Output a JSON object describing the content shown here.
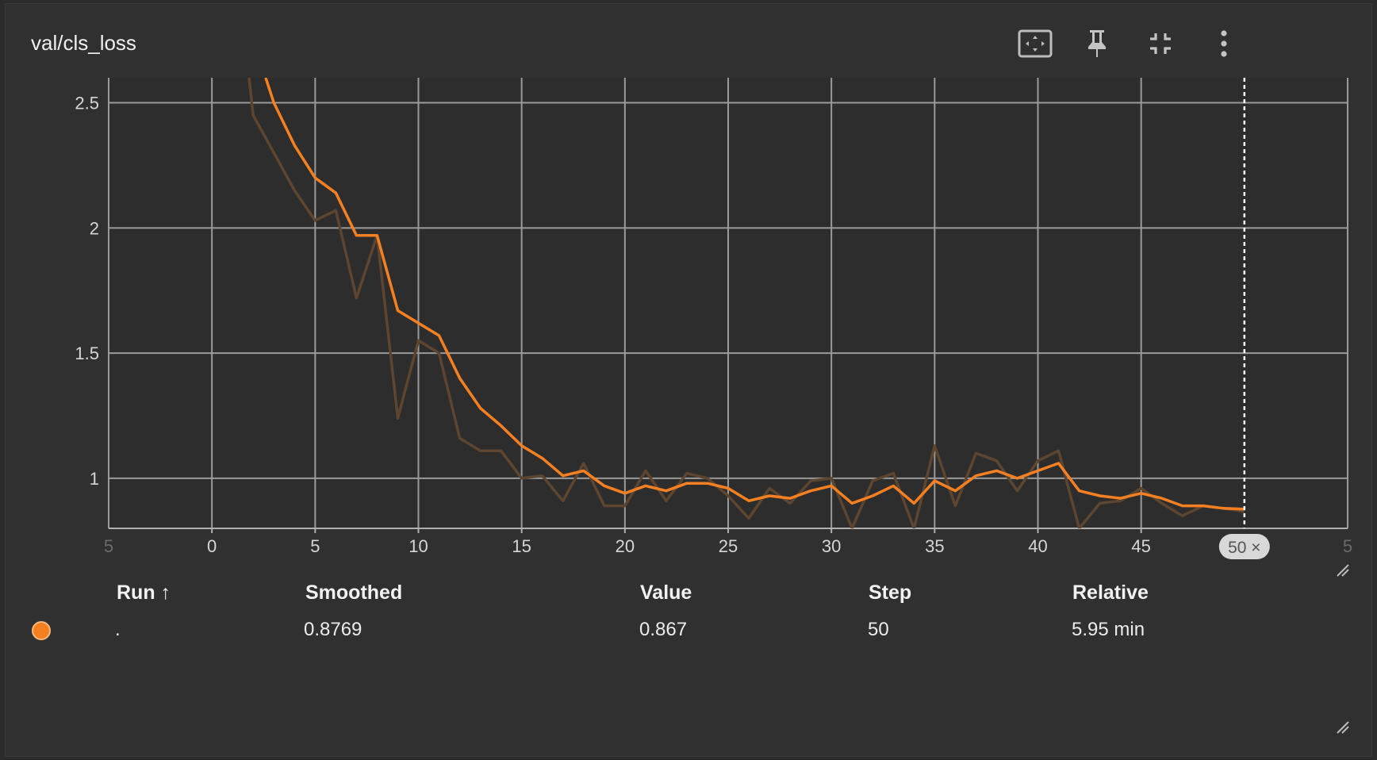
{
  "card": {
    "title": "val/cls_loss",
    "tools": [
      "fit-domain-icon",
      "pin-icon",
      "collapse-icon",
      "more-vert-icon"
    ]
  },
  "table": {
    "headers": {
      "run": "Run ↑",
      "smoothed": "Smoothed",
      "value": "Value",
      "step": "Step",
      "relative": "Relative"
    },
    "row": {
      "run": ".",
      "smoothed": "0.8769",
      "value": "0.867",
      "step": "50",
      "relative": "5.95 min",
      "color": "#f58022"
    }
  },
  "chart_data": {
    "type": "line",
    "title": "",
    "xlabel": "",
    "ylabel": "",
    "xlim": [
      -5,
      55
    ],
    "ylim": [
      0.8,
      2.6
    ],
    "xticks": [
      0,
      5,
      10,
      15,
      20,
      25,
      30,
      35,
      40,
      45
    ],
    "xticks_edge": [
      "5",
      "5"
    ],
    "yticks": [
      1,
      1.5,
      2,
      2.5
    ],
    "ytick_labels": [
      "1",
      "1.5",
      "2",
      "2.5"
    ],
    "grid": true,
    "cursor_step": 50,
    "cursor_label": "50 ×",
    "smoothed_color": "#f58022",
    "raw_color": "#5e4530",
    "series": [
      {
        "kind": "raw",
        "x": [
          1.8,
          2,
          3,
          4,
          5,
          6,
          7,
          8,
          9,
          10,
          11,
          12,
          13,
          14,
          15,
          16,
          17,
          18,
          19,
          20,
          21,
          22,
          23,
          24,
          25,
          26,
          27,
          28,
          29,
          30,
          31,
          32,
          33,
          34,
          35,
          36,
          37,
          38,
          39,
          40,
          41,
          42,
          43,
          44,
          45,
          46,
          47,
          48,
          49,
          50
        ],
        "y": [
          2.6,
          2.45,
          2.3,
          2.15,
          2.03,
          2.07,
          1.72,
          1.97,
          1.24,
          1.55,
          1.5,
          1.16,
          1.11,
          1.11,
          1.0,
          1.01,
          0.91,
          1.06,
          0.89,
          0.89,
          1.03,
          0.91,
          1.02,
          1.0,
          0.93,
          0.84,
          0.96,
          0.9,
          0.99,
          1.0,
          0.8,
          0.99,
          1.02,
          0.8,
          1.13,
          0.89,
          1.1,
          1.07,
          0.95,
          1.07,
          1.11,
          0.8,
          0.9,
          0.91,
          0.96,
          0.9,
          0.85,
          0.89,
          0.88,
          0.867
        ]
      },
      {
        "kind": "smoothed",
        "x": [
          2.6,
          3,
          4,
          5,
          6,
          7,
          8,
          9,
          10,
          11,
          12,
          13,
          14,
          15,
          16,
          17,
          18,
          19,
          20,
          21,
          22,
          23,
          24,
          25,
          26,
          27,
          28,
          29,
          30,
          31,
          32,
          33,
          34,
          35,
          36,
          37,
          38,
          39,
          40,
          41,
          42,
          43,
          44,
          45,
          46,
          47,
          48,
          49,
          50
        ],
        "y": [
          2.6,
          2.5,
          2.33,
          2.2,
          2.14,
          1.97,
          1.97,
          1.67,
          1.62,
          1.57,
          1.4,
          1.28,
          1.21,
          1.13,
          1.08,
          1.01,
          1.03,
          0.97,
          0.94,
          0.97,
          0.95,
          0.98,
          0.98,
          0.96,
          0.91,
          0.93,
          0.92,
          0.95,
          0.97,
          0.9,
          0.93,
          0.97,
          0.9,
          0.99,
          0.95,
          1.01,
          1.03,
          1.0,
          1.03,
          1.06,
          0.95,
          0.93,
          0.92,
          0.94,
          0.92,
          0.89,
          0.89,
          0.88,
          0.877
        ]
      }
    ]
  }
}
